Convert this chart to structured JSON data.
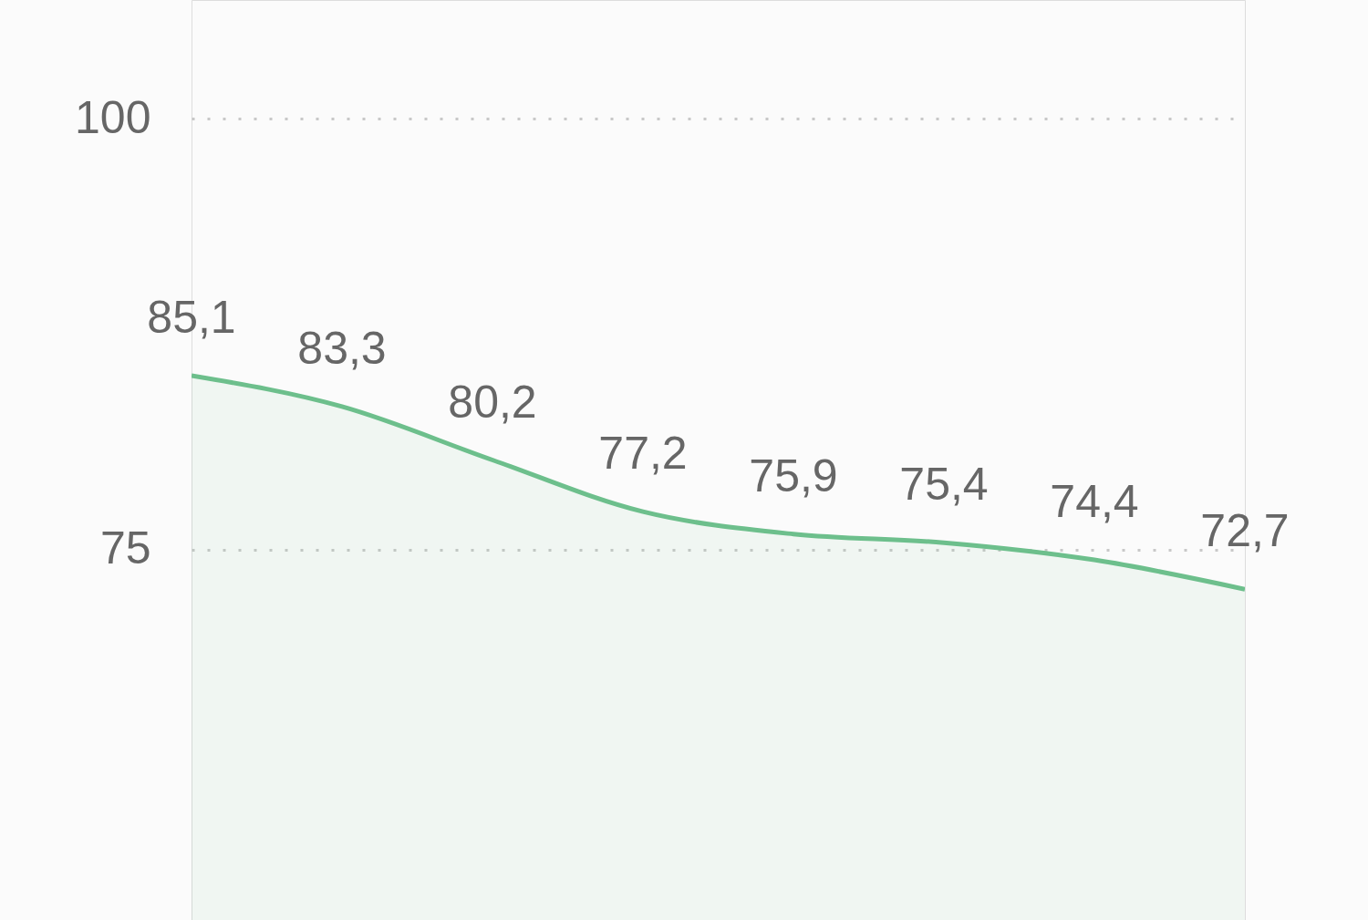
{
  "chart_data": {
    "type": "area",
    "categories": [
      null,
      null,
      null,
      null,
      null,
      null,
      null,
      null
    ],
    "series": [
      {
        "color": "#6dbf8c",
        "values": [
          85.1,
          83.3,
          80.2,
          77.2,
          75.9,
          75.4,
          74.4,
          72.7
        ],
        "value_labels": [
          "85,1",
          "83,3",
          "80,2",
          "77,2",
          "75,9",
          "75,4",
          "74,4",
          "72,7"
        ]
      }
    ],
    "ylim": [
      53.5,
      106.9
    ],
    "yticks": [
      75,
      100
    ],
    "grid": "y",
    "line_style": "solid"
  }
}
